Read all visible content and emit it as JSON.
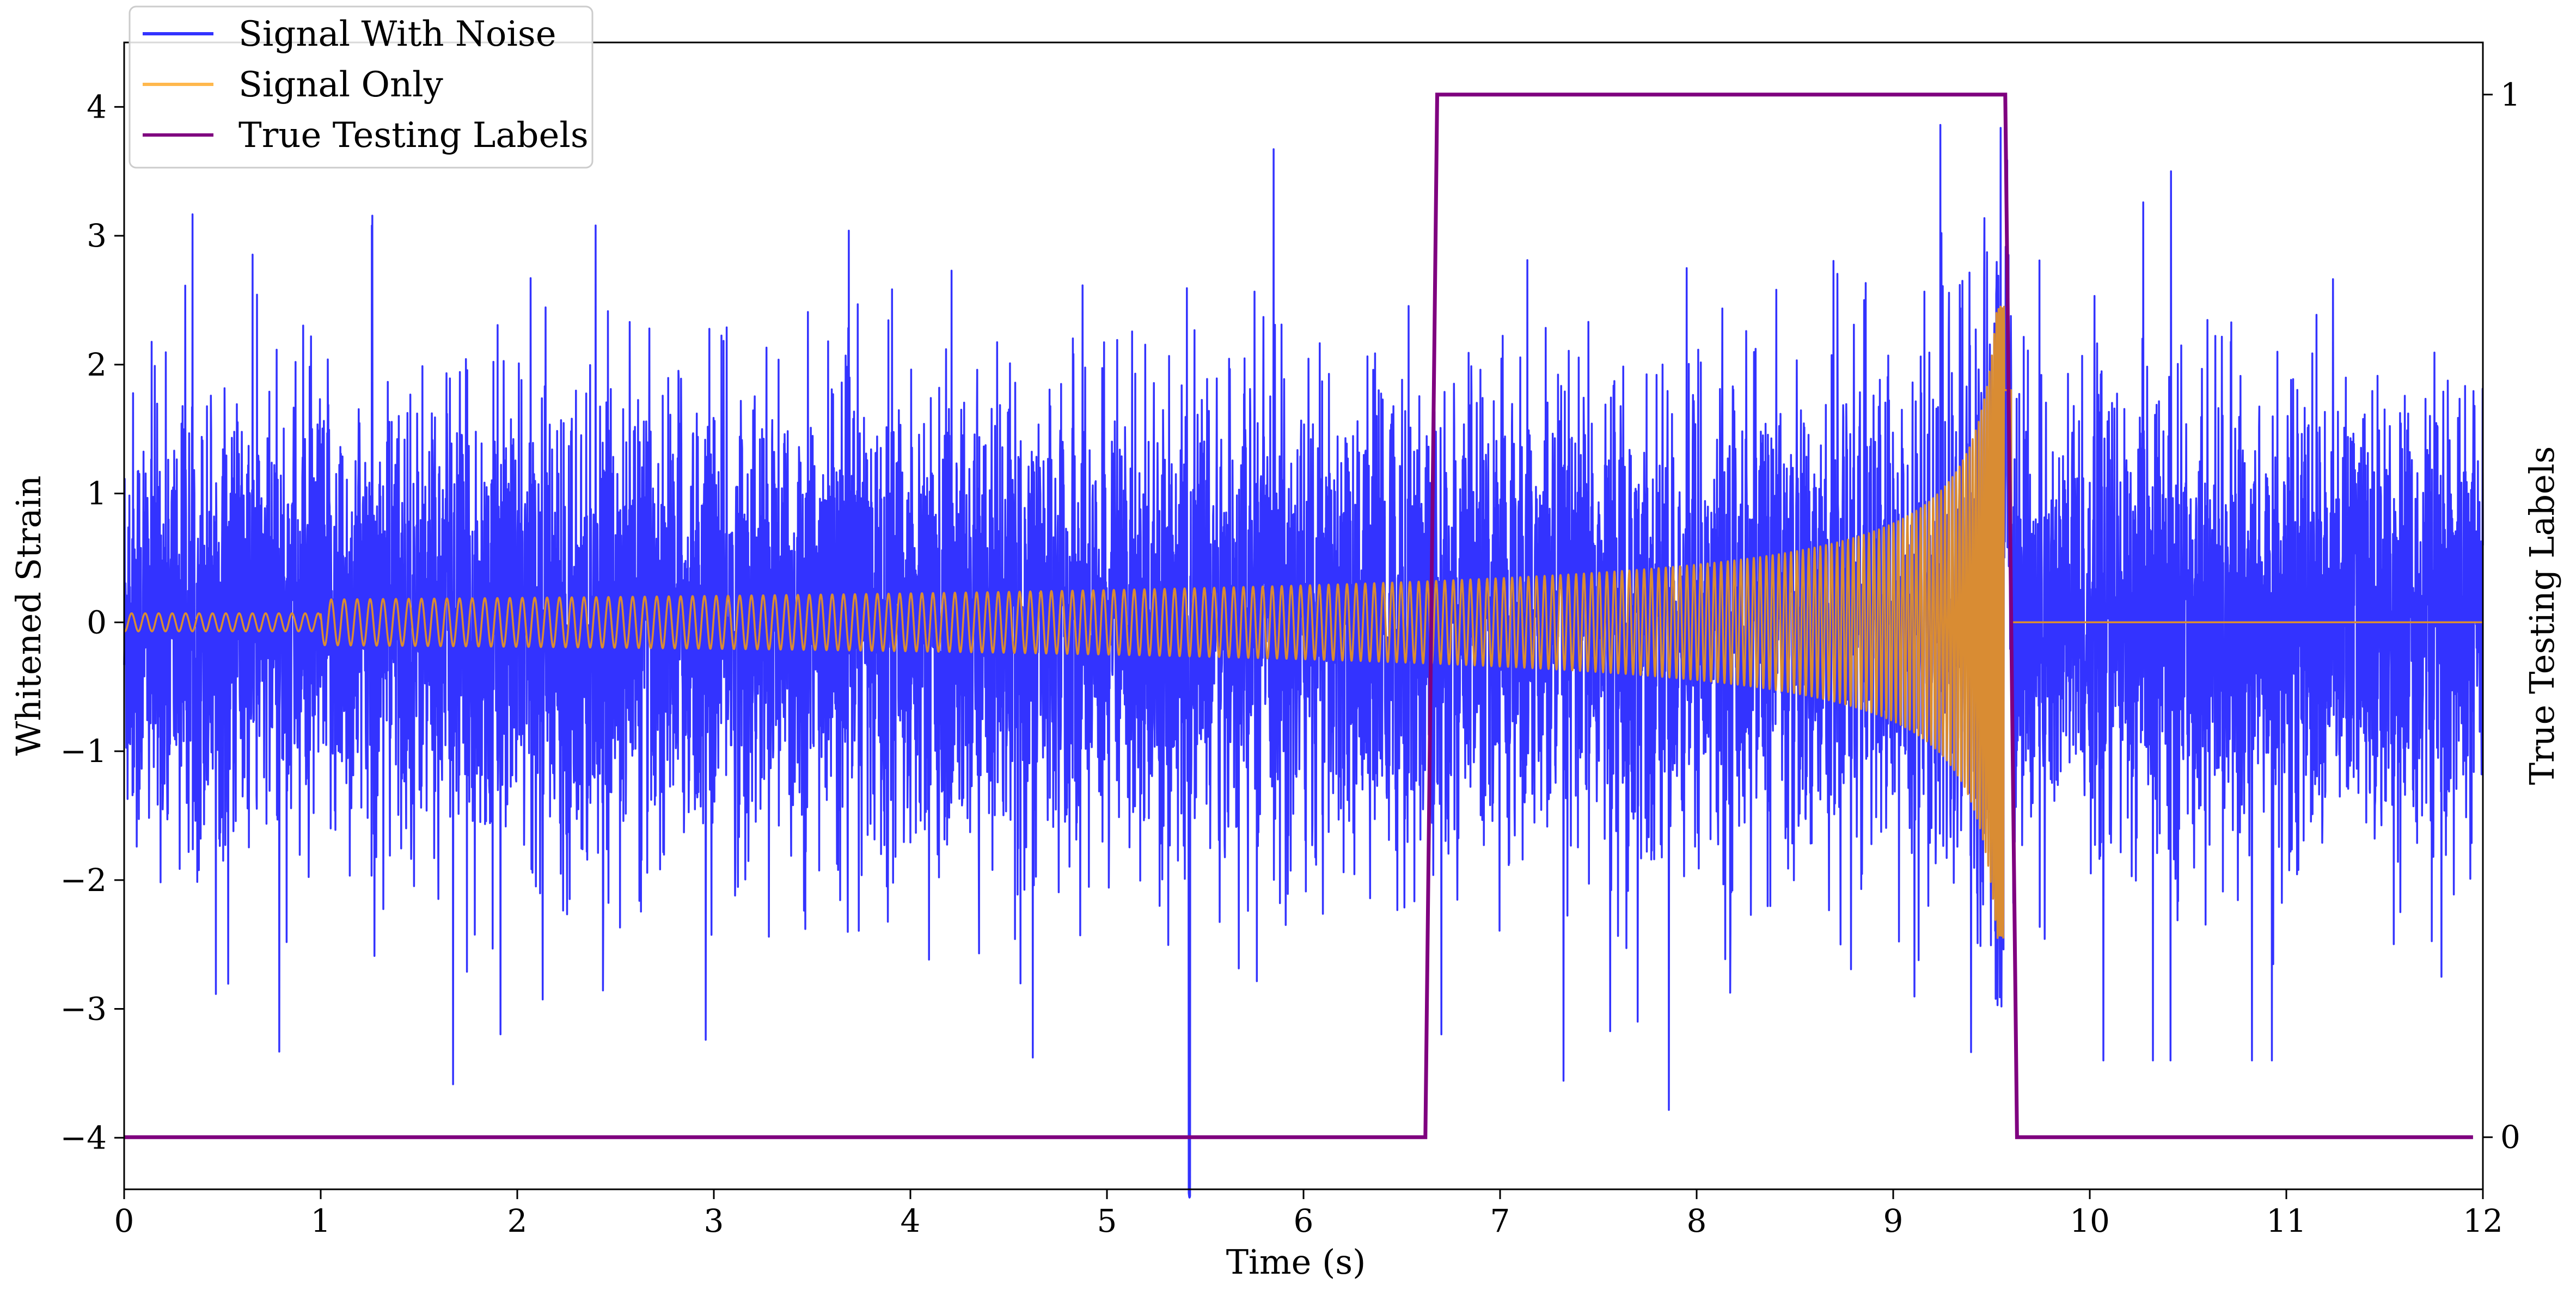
{
  "chart_data": {
    "type": "line",
    "xlabel": "Time (s)",
    "ylabel": "Whitened Strain",
    "y2label": "True Testing Labels",
    "xlim": [
      0,
      12
    ],
    "ylim": [
      -4.4,
      4.5
    ],
    "y2lim": [
      -0.05,
      1.05
    ],
    "xticks": [
      "0",
      "1",
      "2",
      "3",
      "4",
      "5",
      "6",
      "7",
      "8",
      "9",
      "10",
      "11",
      "12"
    ],
    "yticks": [
      "−4",
      "−3",
      "−2",
      "−1",
      "0",
      "1",
      "2",
      "3",
      "4"
    ],
    "y2ticks": [
      "0",
      "1"
    ],
    "legend": {
      "placement": "top-left",
      "entries": [
        "Signal With Noise",
        "Signal Only",
        "True Testing Labels"
      ]
    },
    "colors": {
      "noise": "#3333ff",
      "signal": "#d98c33",
      "labels": "#7f007f"
    },
    "series": [
      {
        "name": "Signal With Noise",
        "description_stats": {
          "typical_range": [
            -1.5,
            1.5
          ],
          "max": 3.6,
          "min": -4.2,
          "min_at_x": 5.42
        }
      },
      {
        "name": "Signal Only",
        "chirp": {
          "start": 0.0,
          "merger": 9.6,
          "amp_start": 0.07,
          "amp_at_7": 0.2,
          "amp_at_9": 0.45,
          "amp_peak": 2.45,
          "end": 12.0,
          "after_merger": 0.0
        }
      },
      {
        "name": "True Testing Labels",
        "x": [
          0.0,
          6.62,
          6.68,
          9.57,
          9.63,
          11.95
        ],
        "y": [
          0,
          0,
          1,
          1,
          0,
          0
        ]
      }
    ]
  }
}
